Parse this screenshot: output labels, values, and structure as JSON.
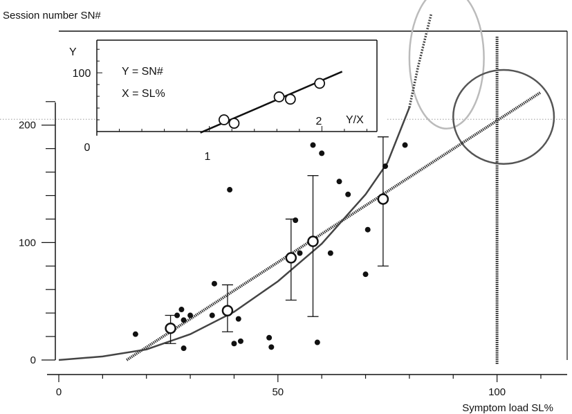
{
  "chart_data": [
    {
      "type": "scatter",
      "title": "",
      "xlabel": "Symptom load SL%",
      "ylabel": "Session number SN#",
      "xlim": [
        0,
        116
      ],
      "ylim": [
        0,
        280
      ],
      "x_ticks": [
        0,
        50,
        100
      ],
      "y_ticks": [
        0,
        100,
        200
      ],
      "reference_lines": {
        "vertical_x": 100,
        "horizontal_y": 205
      },
      "series": [
        {
          "kind": "points",
          "points": [
            [
              17.5,
              22
            ],
            [
              27,
              38
            ],
            [
              28,
              43
            ],
            [
              28.5,
              10
            ],
            [
              28.5,
              34
            ],
            [
              30,
              38
            ],
            [
              35,
              38
            ],
            [
              35.5,
              65
            ],
            [
              39,
              145
            ],
            [
              40,
              14
            ],
            [
              41,
              35
            ],
            [
              41.5,
              16
            ],
            [
              48,
              19
            ],
            [
              48.5,
              11
            ],
            [
              54,
              119
            ],
            [
              55,
              91
            ],
            [
              58,
              183
            ],
            [
              59,
              15
            ],
            [
              60,
              176
            ],
            [
              62,
              91
            ],
            [
              64,
              152
            ],
            [
              66,
              141
            ],
            [
              70,
              73
            ],
            [
              70.5,
              111
            ],
            [
              74.5,
              165
            ],
            [
              79,
              183
            ]
          ]
        },
        {
          "kind": "mean_with_error",
          "points": [
            {
              "x": 25.5,
              "y": 27,
              "low": 14,
              "high": 38
            },
            {
              "x": 38.5,
              "y": 42,
              "low": 24,
              "high": 64
            },
            {
              "x": 53,
              "y": 87,
              "low": 51,
              "high": 120
            },
            {
              "x": 58,
              "y": 101,
              "low": 37,
              "high": 157
            },
            {
              "x": 74,
              "y": 137,
              "low": 80,
              "high": 190
            }
          ]
        },
        {
          "kind": "linear_fit",
          "points": [
            [
              15.5,
              0
            ],
            [
              110,
              228
            ]
          ]
        },
        {
          "kind": "curve_fit",
          "points": [
            [
              0,
              0
            ],
            [
              10,
              3
            ],
            [
              20,
              9
            ],
            [
              30,
              22
            ],
            [
              40,
              41
            ],
            [
              50,
              67
            ],
            [
              60,
              99
            ],
            [
              70,
              141
            ],
            [
              75,
              168
            ],
            [
              80,
              215
            ]
          ],
          "extension": [
            [
              80,
              215
            ],
            [
              82,
              250
            ],
            [
              85,
              295
            ]
          ]
        }
      ],
      "highlights": [
        {
          "cx": 88.5,
          "cy": 257,
          "rx": 8.5,
          "ry": 60,
          "color": "#bbbbbb"
        },
        {
          "cx": 101.5,
          "cy": 207,
          "rx": 11.5,
          "ry": 40,
          "color": "#555555"
        }
      ]
    },
    {
      "type": "scatter",
      "title": "",
      "ylabel": "Y",
      "xlabel": "Y/X",
      "annotations": [
        "Y = SN#",
        "X = SL%"
      ],
      "xlim": [
        0,
        2.6
      ],
      "ylim": [
        0,
        165
      ],
      "x_ticks": [
        0,
        1,
        2
      ],
      "y_ticks": [
        100
      ],
      "series": [
        {
          "kind": "points",
          "points": [
            [
              1.13,
              20
            ],
            [
              1.22,
              14
            ],
            [
              1.62,
              59
            ],
            [
              1.72,
              55
            ],
            [
              1.98,
              82
            ]
          ]
        },
        {
          "kind": "linear_fit",
          "points": [
            [
              0.92,
              -2
            ],
            [
              2.18,
              102
            ]
          ]
        }
      ]
    }
  ]
}
